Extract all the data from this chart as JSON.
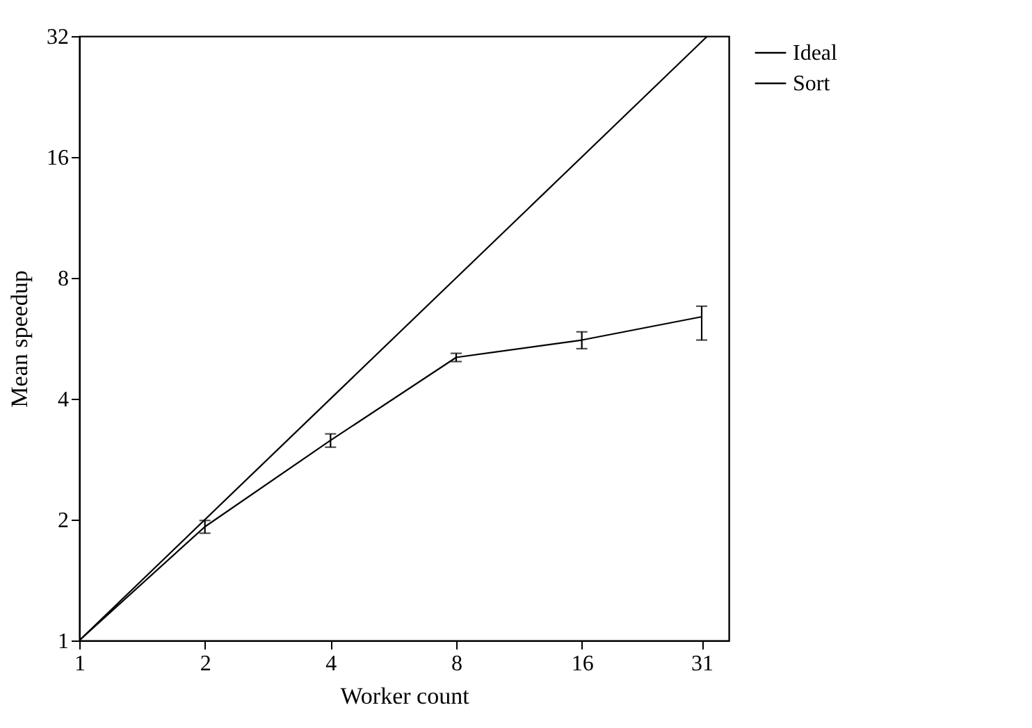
{
  "chart_data": {
    "type": "line",
    "xlabel": "Worker count",
    "ylabel": "Mean speedup",
    "log": "xy",
    "xlim": [
      1,
      36
    ],
    "xticks": [
      1,
      2,
      4,
      8,
      16,
      31
    ],
    "ylim": [
      1,
      32
    ],
    "yticks": [
      1,
      2,
      4,
      8,
      16,
      32
    ],
    "grid": false,
    "legend": "top right",
    "line_style": "solid",
    "series": [
      {
        "name": "Ideal",
        "color": "#000000",
        "x": [
          1,
          32
        ],
        "values": [
          1,
          32
        ]
      },
      {
        "name": "Sort",
        "color": "#000000",
        "x": [
          1,
          2,
          4,
          8,
          16,
          31
        ],
        "values": [
          1,
          1.92,
          3.15,
          5.07,
          5.6,
          6.4
        ],
        "errors": [
          null,
          0.07,
          0.12,
          0.12,
          0.27,
          [
            5.6,
            6.8
          ]
        ]
      }
    ]
  }
}
